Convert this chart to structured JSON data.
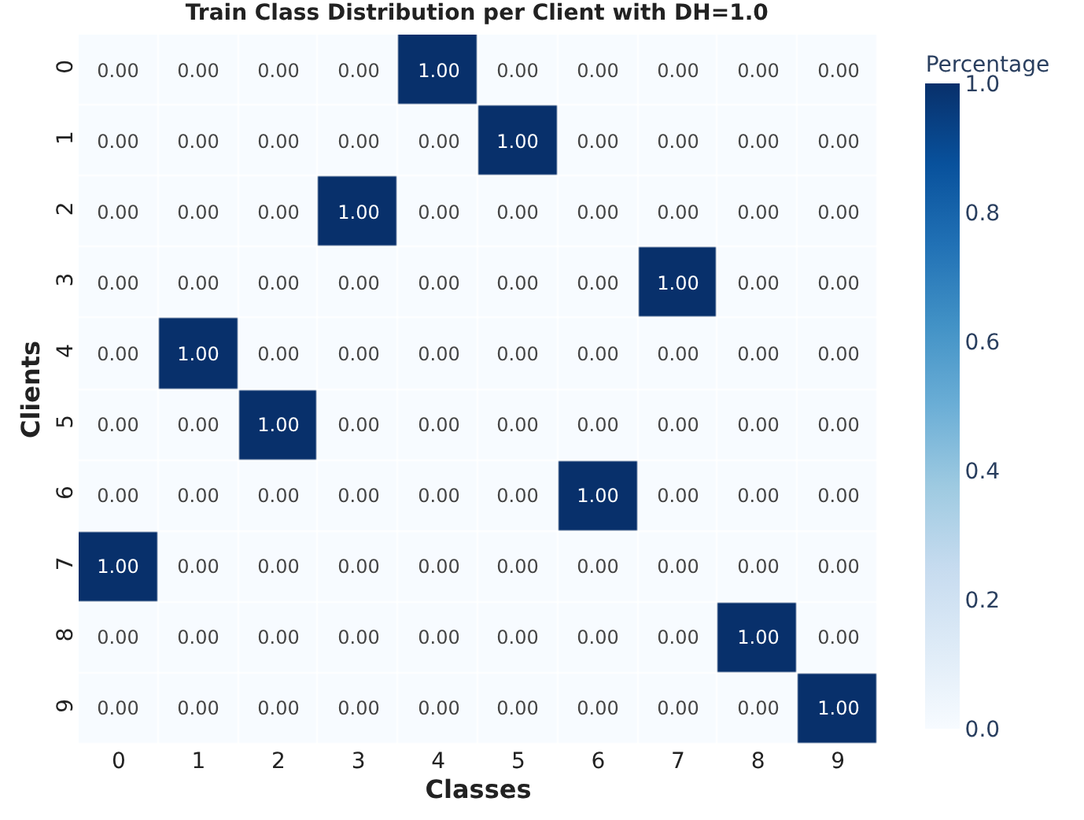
{
  "chart_data": {
    "type": "heatmap",
    "title": "Train Class Distribution per Client with DH=1.0",
    "xlabel": "Classes",
    "ylabel": "Clients",
    "clabel": "Percentage",
    "categories": [
      "0",
      "1",
      "2",
      "3",
      "4",
      "5",
      "6",
      "7",
      "8",
      "9"
    ],
    "y_categories": [
      "0",
      "1",
      "2",
      "3",
      "4",
      "5",
      "6",
      "7",
      "8",
      "9"
    ],
    "cells": [
      [
        0,
        0,
        0,
        0,
        1,
        0,
        0,
        0,
        0,
        0
      ],
      [
        0,
        0,
        0,
        0,
        0,
        1,
        0,
        0,
        0,
        0
      ],
      [
        0,
        0,
        0,
        1,
        0,
        0,
        0,
        0,
        0,
        0
      ],
      [
        0,
        0,
        0,
        0,
        0,
        0,
        0,
        1,
        0,
        0
      ],
      [
        0,
        1,
        0,
        0,
        0,
        0,
        0,
        0,
        0,
        0
      ],
      [
        0,
        0,
        1,
        0,
        0,
        0,
        0,
        0,
        0,
        0
      ],
      [
        0,
        0,
        0,
        0,
        0,
        0,
        1,
        0,
        0,
        0
      ],
      [
        1,
        0,
        0,
        0,
        0,
        0,
        0,
        0,
        0,
        0
      ],
      [
        0,
        0,
        0,
        0,
        0,
        0,
        0,
        0,
        1,
        0
      ],
      [
        0,
        0,
        0,
        0,
        0,
        0,
        0,
        0,
        0,
        1
      ]
    ],
    "cell_labels": [
      [
        "0.00",
        "0.00",
        "0.00",
        "0.00",
        "1.00",
        "0.00",
        "0.00",
        "0.00",
        "0.00",
        "0.00"
      ],
      [
        "0.00",
        "0.00",
        "0.00",
        "0.00",
        "0.00",
        "1.00",
        "0.00",
        "0.00",
        "0.00",
        "0.00"
      ],
      [
        "0.00",
        "0.00",
        "0.00",
        "1.00",
        "0.00",
        "0.00",
        "0.00",
        "0.00",
        "0.00",
        "0.00"
      ],
      [
        "0.00",
        "0.00",
        "0.00",
        "0.00",
        "0.00",
        "0.00",
        "0.00",
        "1.00",
        "0.00",
        "0.00"
      ],
      [
        "0.00",
        "1.00",
        "0.00",
        "0.00",
        "0.00",
        "0.00",
        "0.00",
        "0.00",
        "0.00",
        "0.00"
      ],
      [
        "0.00",
        "0.00",
        "1.00",
        "0.00",
        "0.00",
        "0.00",
        "0.00",
        "0.00",
        "0.00",
        "0.00"
      ],
      [
        "0.00",
        "0.00",
        "0.00",
        "0.00",
        "0.00",
        "0.00",
        "1.00",
        "0.00",
        "0.00",
        "0.00"
      ],
      [
        "1.00",
        "0.00",
        "0.00",
        "0.00",
        "0.00",
        "0.00",
        "0.00",
        "0.00",
        "0.00",
        "0.00"
      ],
      [
        "0.00",
        "0.00",
        "0.00",
        "0.00",
        "0.00",
        "0.00",
        "0.00",
        "0.00",
        "1.00",
        "0.00"
      ],
      [
        "0.00",
        "0.00",
        "0.00",
        "0.00",
        "0.00",
        "0.00",
        "0.00",
        "0.00",
        "0.00",
        "1.00"
      ]
    ],
    "clim": [
      0,
      1
    ],
    "cticks": [
      {
        "value": 0,
        "label": "0.0"
      },
      {
        "value": 0.2,
        "label": "0.2"
      },
      {
        "value": 0.4,
        "label": "0.4"
      },
      {
        "value": 0.6,
        "label": "0.6"
      },
      {
        "value": 0.8,
        "label": "0.8"
      },
      {
        "value": 1,
        "label": "1.0"
      }
    ]
  }
}
